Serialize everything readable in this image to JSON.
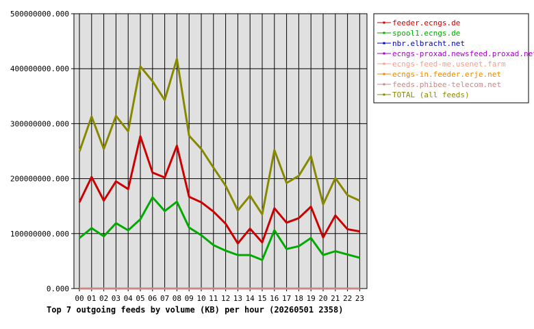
{
  "chart_data": {
    "type": "line",
    "title": "Top 7 outgoing feeds by volume (KB) per hour (20260501 2358)",
    "xlabel": "",
    "ylabel": "",
    "categories": [
      "00",
      "01",
      "02",
      "03",
      "04",
      "05",
      "06",
      "07",
      "08",
      "09",
      "10",
      "11",
      "12",
      "13",
      "14",
      "15",
      "16",
      "17",
      "18",
      "19",
      "20",
      "21",
      "22",
      "23"
    ],
    "ylim": [
      0,
      500000000
    ],
    "yticks": [
      "0.000",
      "100000000.000",
      "200000000.000",
      "300000000.000",
      "400000000.000",
      "500000000.000"
    ],
    "grid": true,
    "legend_position": "top-right",
    "series": [
      {
        "name": "feeder.ecngs.de",
        "color": "#cc0000",
        "values": [
          157000000,
          203000000,
          160000000,
          195000000,
          181000000,
          277000000,
          211000000,
          202000000,
          260000000,
          167000000,
          157000000,
          140000000,
          118000000,
          82000000,
          109000000,
          84000000,
          146000000,
          120000000,
          128000000,
          149000000,
          93000000,
          133000000,
          108000000,
          104000000
        ]
      },
      {
        "name": "spool1.ecngs.de",
        "color": "#00aa00",
        "values": [
          92000000,
          110000000,
          95000000,
          119000000,
          106000000,
          126000000,
          166000000,
          141000000,
          158000000,
          111000000,
          97000000,
          79000000,
          69000000,
          61000000,
          61000000,
          52000000,
          106000000,
          72000000,
          77000000,
          92000000,
          61000000,
          68000000,
          62000000,
          56000000
        ]
      },
      {
        "name": "nbr.elbracht.net",
        "color": "#0000cc",
        "values": [
          0,
          0,
          0,
          0,
          0,
          0,
          0,
          0,
          0,
          0,
          0,
          0,
          0,
          0,
          0,
          0,
          0,
          0,
          0,
          0,
          0,
          0,
          0,
          0
        ]
      },
      {
        "name": "ecngs-proxad.newsfeed.proxad.net",
        "color": "#aa00cc",
        "values": [
          0,
          0,
          0,
          0,
          0,
          0,
          0,
          0,
          0,
          0,
          0,
          0,
          0,
          0,
          0,
          0,
          0,
          0,
          0,
          0,
          0,
          0,
          0,
          0
        ]
      },
      {
        "name": "ecngs-feed-me.usenet.farm",
        "color": "#ff9988",
        "values": [
          0,
          0,
          0,
          0,
          0,
          0,
          0,
          0,
          0,
          0,
          0,
          0,
          0,
          0,
          0,
          0,
          0,
          0,
          0,
          0,
          0,
          0,
          0,
          0
        ]
      },
      {
        "name": "ecngs-in.feeder.erje.net",
        "color": "#ee8800",
        "values": [
          0,
          0,
          0,
          0,
          0,
          0,
          0,
          0,
          0,
          0,
          0,
          0,
          0,
          0,
          0,
          0,
          0,
          0,
          0,
          0,
          0,
          0,
          0,
          0
        ]
      },
      {
        "name": "feeds.phibee-telecom.net",
        "color": "#cc8888",
        "values": [
          0,
          0,
          0,
          0,
          0,
          0,
          0,
          0,
          0,
          0,
          0,
          0,
          0,
          0,
          0,
          0,
          0,
          0,
          0,
          0,
          0,
          0,
          0,
          0
        ]
      },
      {
        "name": "TOTAL (all feeds)",
        "color": "#888800",
        "values": [
          249000000,
          313000000,
          254000000,
          314000000,
          286000000,
          404000000,
          377000000,
          343000000,
          418000000,
          278000000,
          254000000,
          220000000,
          187000000,
          142000000,
          169000000,
          135000000,
          252000000,
          192000000,
          205000000,
          241000000,
          153000000,
          201000000,
          170000000,
          160000000
        ]
      }
    ]
  }
}
